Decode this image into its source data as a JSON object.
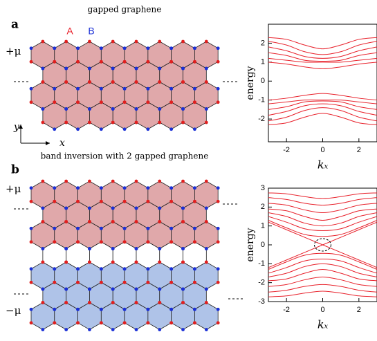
{
  "panels": [
    {
      "label": "a",
      "title": "gapped graphene",
      "sublattice_labels": [
        "A",
        "B"
      ],
      "mu_labels": [
        "+μ"
      ],
      "axis_labels": {
        "y": "y",
        "x": "x"
      },
      "chart": {
        "type": "line",
        "ylabel": "energy",
        "xlabel": "kₓ",
        "color": "#e8202a",
        "xlim": [
          -3,
          3
        ],
        "ylim": [
          -3.2,
          3
        ],
        "xticks": [
          -2,
          0,
          2
        ],
        "yticks": [
          2,
          1,
          0,
          -1,
          -2
        ],
        "x": [
          -3,
          -2,
          -1,
          0,
          1,
          2,
          3
        ],
        "series": [
          {
            "values": [
              1.0,
              0.9,
              0.75,
              0.65,
              0.75,
              0.9,
              1.0
            ]
          },
          {
            "values": [
              1.2,
              1.1,
              1.0,
              1.0,
              1.0,
              1.1,
              1.2
            ]
          },
          {
            "values": [
              1.5,
              1.35,
              1.1,
              1.05,
              1.1,
              1.35,
              1.5
            ]
          },
          {
            "values": [
              1.8,
              1.6,
              1.3,
              1.2,
              1.3,
              1.6,
              1.8
            ]
          },
          {
            "values": [
              2.1,
              1.9,
              1.55,
              1.4,
              1.55,
              1.9,
              2.1
            ]
          },
          {
            "values": [
              2.3,
              2.2,
              1.9,
              1.7,
              1.9,
              2.2,
              2.3
            ]
          },
          {
            "values": [
              -1.0,
              -0.9,
              -0.75,
              -0.65,
              -0.75,
              -0.9,
              -1.0
            ]
          },
          {
            "values": [
              -1.2,
              -1.1,
              -1.0,
              -1.0,
              -1.0,
              -1.1,
              -1.2
            ]
          },
          {
            "values": [
              -1.5,
              -1.35,
              -1.1,
              -1.05,
              -1.1,
              -1.35,
              -1.5
            ]
          },
          {
            "values": [
              -1.8,
              -1.6,
              -1.3,
              -1.2,
              -1.3,
              -1.6,
              -1.8
            ]
          },
          {
            "values": [
              -2.1,
              -1.9,
              -1.55,
              -1.4,
              -1.55,
              -1.9,
              -2.1
            ]
          },
          {
            "values": [
              -2.3,
              -2.2,
              -1.9,
              -1.7,
              -1.9,
              -2.2,
              -2.3
            ]
          }
        ]
      }
    },
    {
      "label": "b",
      "title": "band inversion with 2 gapped graphene",
      "mu_labels": [
        "+μ",
        "−μ"
      ],
      "chart": {
        "type": "line",
        "ylabel": "energy",
        "xlabel": "kₓ",
        "color": "#e8202a",
        "xlim": [
          -3,
          3
        ],
        "ylim": [
          -3,
          3
        ],
        "xticks": [
          -2,
          0,
          2
        ],
        "yticks": [
          3,
          2,
          1,
          0,
          -1,
          -2,
          -3
        ],
        "x": [
          -3,
          -2,
          -1,
          0,
          1,
          2,
          3
        ],
        "series": [
          {
            "values": [
              1.3,
              0.9,
              0.55,
              0.45,
              0.55,
              0.9,
              1.3
            ]
          },
          {
            "values": [
              1.5,
              1.2,
              0.85,
              0.75,
              0.85,
              1.2,
              1.5
            ]
          },
          {
            "values": [
              1.7,
              1.5,
              1.15,
              1.0,
              1.15,
              1.5,
              1.7
            ]
          },
          {
            "values": [
              1.9,
              1.8,
              1.5,
              1.3,
              1.5,
              1.8,
              1.9
            ]
          },
          {
            "values": [
              2.2,
              2.1,
              1.85,
              1.7,
              1.85,
              2.1,
              2.2
            ]
          },
          {
            "values": [
              2.5,
              2.4,
              2.2,
              2.1,
              2.2,
              2.4,
              2.5
            ]
          },
          {
            "values": [
              2.75,
              2.7,
              2.55,
              2.45,
              2.55,
              2.7,
              2.75
            ]
          },
          {
            "values": [
              -1.3,
              -0.9,
              -0.55,
              -0.45,
              -0.55,
              -0.9,
              -1.3
            ]
          },
          {
            "values": [
              -1.5,
              -1.2,
              -0.85,
              -0.75,
              -0.85,
              -1.2,
              -1.5
            ]
          },
          {
            "values": [
              -1.7,
              -1.5,
              -1.15,
              -1.0,
              -1.15,
              -1.5,
              -1.7
            ]
          },
          {
            "values": [
              -1.9,
              -1.8,
              -1.5,
              -1.3,
              -1.5,
              -1.8,
              -1.9
            ]
          },
          {
            "values": [
              -2.2,
              -2.1,
              -1.85,
              -1.7,
              -1.85,
              -2.1,
              -2.2
            ]
          },
          {
            "values": [
              -2.5,
              -2.4,
              -2.2,
              -2.1,
              -2.2,
              -2.4,
              -2.5
            ]
          },
          {
            "values": [
              -2.75,
              -2.7,
              -2.55,
              -2.45,
              -2.55,
              -2.7,
              -2.75
            ]
          },
          {
            "values": [
              -1.2,
              -0.8,
              -0.4,
              0,
              0.4,
              0.8,
              1.2
            ]
          },
          {
            "values": [
              1.2,
              0.8,
              0.4,
              0,
              -0.4,
              -0.8,
              -1.2
            ]
          }
        ]
      }
    }
  ]
}
